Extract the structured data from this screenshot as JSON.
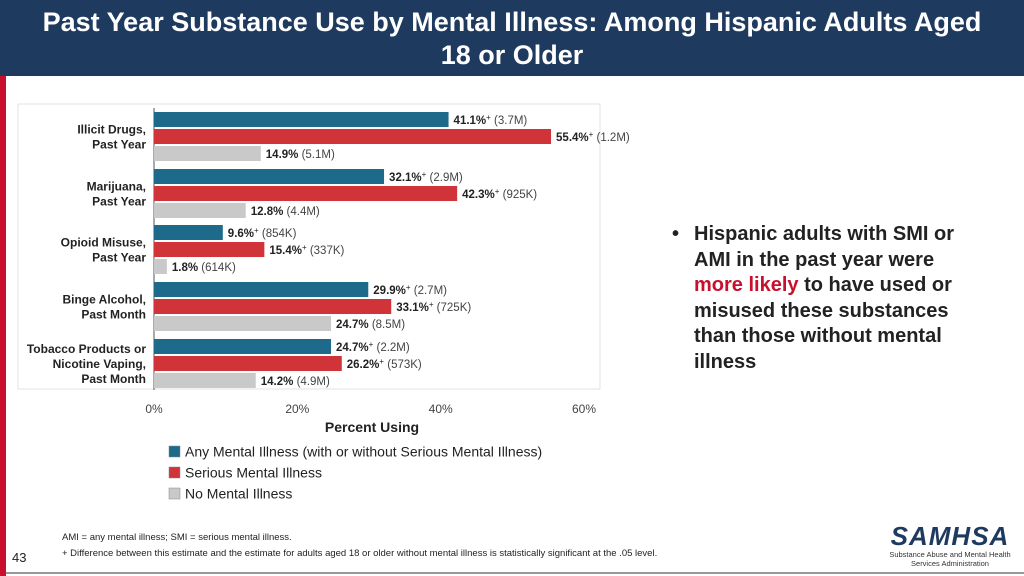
{
  "header": {
    "title": "Past Year Substance Use by Mental Illness: Among Hispanic Adults Aged 18 or Older"
  },
  "colors": {
    "header_bg": "#1f3a5f",
    "ami": "#1e6a8a",
    "smi": "#d13438",
    "none": "#c9c9c9",
    "accent": "#c8102e"
  },
  "chart_data": {
    "type": "bar",
    "orientation": "horizontal",
    "categories": [
      [
        "Illicit Drugs,",
        "Past Year"
      ],
      [
        "Marijuana,",
        "Past Year"
      ],
      [
        "Opioid Misuse,",
        "Past Year"
      ],
      [
        "Binge Alcohol,",
        "Past Month"
      ],
      [
        "Tobacco Products or",
        "Nicotine Vaping,",
        "Past Month"
      ]
    ],
    "series": [
      {
        "name": "Any Mental Illness (with or without Serious Mental Illness)",
        "values": [
          41.1,
          32.1,
          9.6,
          29.9,
          24.7
        ],
        "value_labels": [
          "41.1%",
          "32.1%",
          "9.6%",
          "29.9%",
          "24.7%"
        ],
        "sig": [
          true,
          true,
          true,
          true,
          true
        ],
        "counts": [
          "(3.7M)",
          "(2.9M)",
          "(854K)",
          "(2.7M)",
          "(2.2M)"
        ]
      },
      {
        "name": "Serious Mental Illness",
        "values": [
          55.4,
          42.3,
          15.4,
          33.1,
          26.2
        ],
        "value_labels": [
          "55.4%",
          "42.3%",
          "15.4%",
          "33.1%",
          "26.2%"
        ],
        "sig": [
          true,
          true,
          true,
          true,
          true
        ],
        "counts": [
          "(1.2M)",
          "(925K)",
          "(337K)",
          "(725K)",
          "(573K)"
        ]
      },
      {
        "name": "No Mental Illness",
        "values": [
          14.9,
          12.8,
          1.8,
          24.7,
          14.2
        ],
        "value_labels": [
          "14.9%",
          "12.8%",
          "1.8%",
          "24.7%",
          "14.2%"
        ],
        "sig": [
          false,
          false,
          false,
          false,
          false
        ],
        "counts": [
          "(5.1M)",
          "(4.4M)",
          "(614K)",
          "(8.5M)",
          "(4.9M)"
        ]
      }
    ],
    "xlim": [
      0,
      60
    ],
    "xticks": [
      "0%",
      "20%",
      "40%",
      "60%"
    ],
    "xtick_values": [
      0,
      20,
      40,
      60
    ],
    "xlabel": "Percent Using",
    "sig_marker": "+",
    "legend_position": "bottom"
  },
  "bullet": {
    "symbol": "•",
    "text_before": "Hispanic adults with SMI or AMI in the past year were ",
    "highlight": "more likely",
    "text_after": " to have used or misused these substances than those without mental illness"
  },
  "footnotes": {
    "line1": "AMI = any mental illness; SMI = serious mental illness.",
    "line2": "+ Difference between this estimate and the estimate for adults aged 18 or older without mental illness is statistically significant at the .05 level."
  },
  "page_number": "43",
  "logo": {
    "name": "SAMHSA",
    "subtitle_line1": "Substance Abuse and Mental Health",
    "subtitle_line2": "Services Administration"
  }
}
